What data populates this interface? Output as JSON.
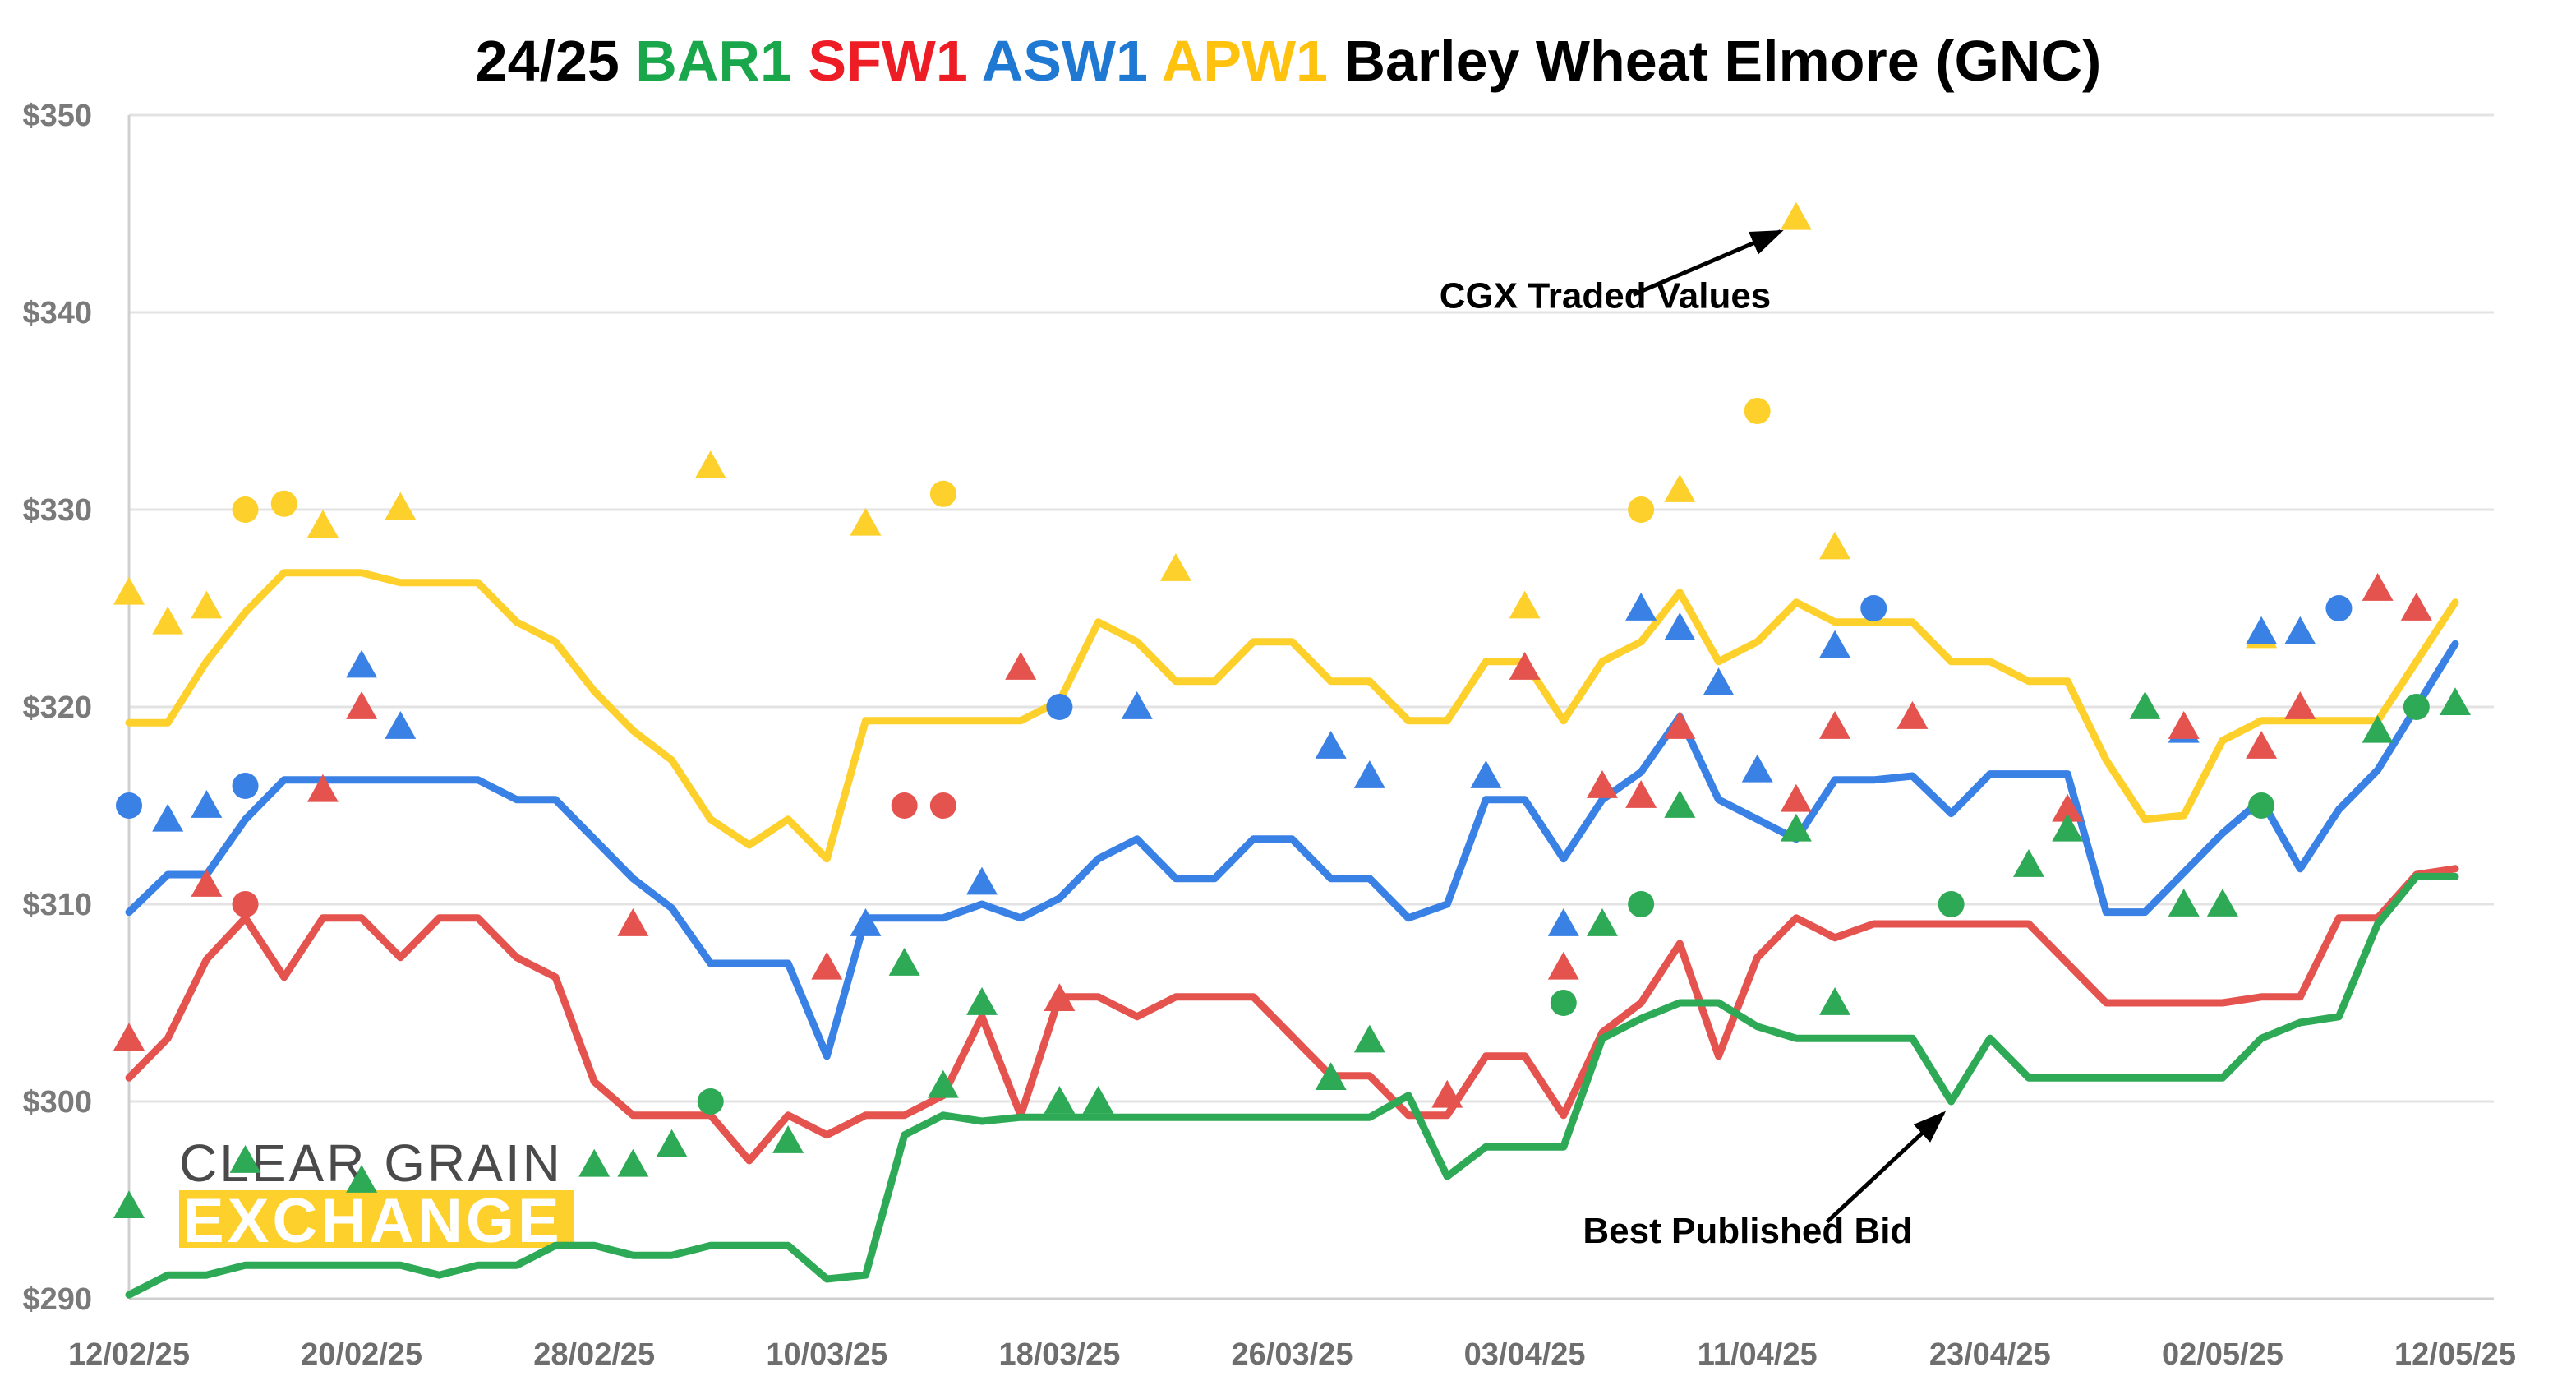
{
  "chart_data": {
    "type": "line",
    "title_parts": [
      {
        "text": "24/25 ",
        "color": "#000000"
      },
      {
        "text": "BAR1 ",
        "color": "#1aa64a"
      },
      {
        "text": "SFW1 ",
        "color": "#ee1c24"
      },
      {
        "text": "ASW1 ",
        "color": "#1f78d1"
      },
      {
        "text": "APW1 ",
        "color": "#ffc20e"
      },
      {
        "text": "Barley Wheat Elmore (GNC)",
        "color": "#000000"
      }
    ],
    "y_ticks": [
      {
        "value": 290,
        "label": "$290"
      },
      {
        "value": 300,
        "label": "$300"
      },
      {
        "value": 310,
        "label": "$310"
      },
      {
        "value": 320,
        "label": "$320"
      },
      {
        "value": 330,
        "label": "$330"
      },
      {
        "value": 340,
        "label": "$340"
      },
      {
        "value": 350,
        "label": "$350"
      }
    ],
    "ylim": [
      290,
      350
    ],
    "x_ticks": [
      {
        "index": 0,
        "label": "12/02/25"
      },
      {
        "index": 6,
        "label": "20/02/25"
      },
      {
        "index": 12,
        "label": "28/02/25"
      },
      {
        "index": 18,
        "label": "10/03/25"
      },
      {
        "index": 24,
        "label": "18/03/25"
      },
      {
        "index": 30,
        "label": "26/03/25"
      },
      {
        "index": 36,
        "label": "03/04/25"
      },
      {
        "index": 42,
        "label": "11/04/25"
      },
      {
        "index": 48,
        "label": "23/04/25"
      },
      {
        "index": 54,
        "label": "02/05/25"
      },
      {
        "index": 60,
        "label": "12/05/25"
      }
    ],
    "xlim": [
      0,
      60
    ],
    "grid": true,
    "colors": {
      "BAR1": "#2eaa57",
      "SFW1": "#e5534f",
      "ASW1": "#3a81e6",
      "APW1": "#fdd02c"
    },
    "series": [
      {
        "key": "APW1",
        "values": [
          319.2,
          319.2,
          322.3,
          324.8,
          326.8,
          326.8,
          326.8,
          326.3,
          326.3,
          326.3,
          324.3,
          323.3,
          320.8,
          318.8,
          317.3,
          314.3,
          313.0,
          314.3,
          312.3,
          319.3,
          319.3,
          319.3,
          319.3,
          319.3,
          320.3,
          324.3,
          323.3,
          321.3,
          321.3,
          323.3,
          323.3,
          321.3,
          321.3,
          319.3,
          319.3,
          322.3,
          322.3,
          319.3,
          322.3,
          323.3,
          325.8,
          322.3,
          323.3,
          325.3,
          324.3,
          324.3,
          324.3,
          322.3,
          322.3,
          321.3,
          321.3,
          317.3,
          314.3,
          314.5,
          318.3,
          319.3,
          319.3,
          319.3,
          319.3,
          322.3,
          325.3
        ]
      },
      {
        "key": "ASW1",
        "values": [
          309.6,
          311.5,
          311.5,
          314.3,
          316.3,
          316.3,
          316.3,
          316.3,
          316.3,
          316.3,
          315.3,
          315.3,
          313.3,
          311.3,
          309.8,
          307.0,
          307.0,
          307.0,
          302.3,
          309.3,
          309.3,
          309.3,
          310.0,
          309.3,
          310.3,
          312.3,
          313.3,
          311.3,
          311.3,
          313.3,
          313.3,
          311.3,
          311.3,
          309.3,
          310.0,
          315.3,
          315.3,
          312.3,
          315.3,
          316.7,
          319.5,
          315.3,
          314.3,
          313.3,
          316.3,
          316.3,
          316.5,
          314.6,
          316.6,
          316.6,
          316.6,
          309.6,
          309.6,
          311.6,
          313.6,
          315.3,
          311.8,
          314.8,
          316.8,
          320.0,
          323.2
        ]
      },
      {
        "key": "SFW1",
        "values": [
          301.2,
          303.2,
          307.2,
          309.3,
          306.3,
          309.3,
          309.3,
          307.3,
          309.3,
          309.3,
          307.3,
          306.3,
          301.0,
          299.3,
          299.3,
          299.3,
          297.0,
          299.3,
          298.3,
          299.3,
          299.3,
          300.3,
          304.3,
          299.3,
          305.3,
          305.3,
          304.3,
          305.3,
          305.3,
          305.3,
          303.3,
          301.3,
          301.3,
          299.3,
          299.3,
          302.3,
          302.3,
          299.3,
          303.5,
          305.0,
          308.0,
          302.3,
          307.3,
          309.3,
          308.3,
          309.0,
          309.0,
          309.0,
          309.0,
          309.0,
          307.0,
          305.0,
          305.0,
          305.0,
          305.0,
          305.3,
          305.3,
          309.3,
          309.3,
          311.5,
          311.8
        ]
      },
      {
        "key": "BAR1",
        "values": [
          290.2,
          291.2,
          291.2,
          291.7,
          291.7,
          291.7,
          291.7,
          291.7,
          291.2,
          291.7,
          291.7,
          292.7,
          292.7,
          292.2,
          292.2,
          292.7,
          292.7,
          292.7,
          291.0,
          291.2,
          298.3,
          299.3,
          299.0,
          299.2,
          299.2,
          299.2,
          299.2,
          299.2,
          299.2,
          299.2,
          299.2,
          299.2,
          299.2,
          300.3,
          296.2,
          297.7,
          297.7,
          297.7,
          303.2,
          304.2,
          305.0,
          305.0,
          303.8,
          303.2,
          303.2,
          303.2,
          303.2,
          300.0,
          303.2,
          301.2,
          301.2,
          301.2,
          301.2,
          301.2,
          301.2,
          303.2,
          304.0,
          304.3,
          309.0,
          311.4,
          311.4
        ]
      }
    ],
    "traded_points": [
      {
        "series": "APW1",
        "shape": "triangle",
        "x": 0,
        "y": 325.8
      },
      {
        "series": "APW1",
        "shape": "triangle",
        "x": 1,
        "y": 324.3
      },
      {
        "series": "APW1",
        "shape": "triangle",
        "x": 2,
        "y": 325.1
      },
      {
        "series": "APW1",
        "shape": "circle",
        "x": 3,
        "y": 330.0
      },
      {
        "series": "APW1",
        "shape": "circle",
        "x": 4,
        "y": 330.3
      },
      {
        "series": "APW1",
        "shape": "triangle",
        "x": 5,
        "y": 329.2
      },
      {
        "series": "APW1",
        "shape": "triangle",
        "x": 7,
        "y": 330.1
      },
      {
        "series": "APW1",
        "shape": "triangle",
        "x": 15,
        "y": 332.2
      },
      {
        "series": "APW1",
        "shape": "triangle",
        "x": 19,
        "y": 329.3
      },
      {
        "series": "APW1",
        "shape": "circle",
        "x": 21,
        "y": 330.8
      },
      {
        "series": "APW1",
        "shape": "triangle",
        "x": 27,
        "y": 327.0
      },
      {
        "series": "APW1",
        "shape": "triangle",
        "x": 36,
        "y": 325.1
      },
      {
        "series": "APW1",
        "shape": "circle",
        "x": 39,
        "y": 330.0
      },
      {
        "series": "APW1",
        "shape": "triangle",
        "x": 40,
        "y": 331.0
      },
      {
        "series": "APW1",
        "shape": "circle",
        "x": 42,
        "y": 335.0
      },
      {
        "series": "APW1",
        "shape": "triangle",
        "x": 43,
        "y": 344.8
      },
      {
        "series": "APW1",
        "shape": "triangle",
        "x": 44,
        "y": 328.1
      },
      {
        "series": "APW1",
        "shape": "triangle",
        "x": 55,
        "y": 323.6
      },
      {
        "series": "ASW1",
        "shape": "circle",
        "x": 0,
        "y": 315.0
      },
      {
        "series": "ASW1",
        "shape": "triangle",
        "x": 1,
        "y": 314.3
      },
      {
        "series": "ASW1",
        "shape": "triangle",
        "x": 2,
        "y": 315.0
      },
      {
        "series": "ASW1",
        "shape": "circle",
        "x": 3,
        "y": 316.0
      },
      {
        "series": "ASW1",
        "shape": "triangle",
        "x": 6,
        "y": 322.1
      },
      {
        "series": "ASW1",
        "shape": "triangle",
        "x": 7,
        "y": 319.0
      },
      {
        "series": "ASW1",
        "shape": "triangle",
        "x": 19,
        "y": 309.0
      },
      {
        "series": "ASW1",
        "shape": "triangle",
        "x": 22,
        "y": 311.1
      },
      {
        "series": "ASW1",
        "shape": "circle",
        "x": 24,
        "y": 320.0
      },
      {
        "series": "ASW1",
        "shape": "triangle",
        "x": 26,
        "y": 320.0
      },
      {
        "series": "ASW1",
        "shape": "triangle",
        "x": 31,
        "y": 318.0
      },
      {
        "series": "ASW1",
        "shape": "triangle",
        "x": 32,
        "y": 316.5
      },
      {
        "series": "ASW1",
        "shape": "triangle",
        "x": 35,
        "y": 316.5
      },
      {
        "series": "ASW1",
        "shape": "triangle",
        "x": 37,
        "y": 309.0
      },
      {
        "series": "ASW1",
        "shape": "triangle",
        "x": 39,
        "y": 325.0
      },
      {
        "series": "ASW1",
        "shape": "triangle",
        "x": 40,
        "y": 324.0
      },
      {
        "series": "ASW1",
        "shape": "triangle",
        "x": 41,
        "y": 321.2
      },
      {
        "series": "ASW1",
        "shape": "triangle",
        "x": 42,
        "y": 316.8
      },
      {
        "series": "ASW1",
        "shape": "triangle",
        "x": 44,
        "y": 323.1
      },
      {
        "series": "ASW1",
        "shape": "circle",
        "x": 45,
        "y": 325.0
      },
      {
        "series": "ASW1",
        "shape": "triangle",
        "x": 53,
        "y": 318.8
      },
      {
        "series": "ASW1",
        "shape": "triangle",
        "x": 55,
        "y": 323.8
      },
      {
        "series": "ASW1",
        "shape": "triangle",
        "x": 56,
        "y": 323.8
      },
      {
        "series": "ASW1",
        "shape": "circle",
        "x": 57,
        "y": 325.0
      },
      {
        "series": "SFW1",
        "shape": "triangle",
        "x": 0,
        "y": 303.2
      },
      {
        "series": "SFW1",
        "shape": "triangle",
        "x": 2,
        "y": 311.0
      },
      {
        "series": "SFW1",
        "shape": "circle",
        "x": 3,
        "y": 310.0
      },
      {
        "series": "SFW1",
        "shape": "triangle",
        "x": 5,
        "y": 315.8
      },
      {
        "series": "SFW1",
        "shape": "triangle",
        "x": 6,
        "y": 320.0
      },
      {
        "series": "SFW1",
        "shape": "triangle",
        "x": 13,
        "y": 309.0
      },
      {
        "series": "SFW1",
        "shape": "triangle",
        "x": 18,
        "y": 306.8
      },
      {
        "series": "SFW1",
        "shape": "circle",
        "x": 20,
        "y": 315.0
      },
      {
        "series": "SFW1",
        "shape": "circle",
        "x": 21,
        "y": 315.0
      },
      {
        "series": "SFW1",
        "shape": "triangle",
        "x": 23,
        "y": 322.0
      },
      {
        "series": "SFW1",
        "shape": "triangle",
        "x": 24,
        "y": 305.2
      },
      {
        "series": "SFW1",
        "shape": "triangle",
        "x": 34,
        "y": 300.3
      },
      {
        "series": "SFW1",
        "shape": "triangle",
        "x": 36,
        "y": 322.0
      },
      {
        "series": "SFW1",
        "shape": "triangle",
        "x": 37,
        "y": 306.8
      },
      {
        "series": "SFW1",
        "shape": "triangle",
        "x": 38,
        "y": 316.0
      },
      {
        "series": "SFW1",
        "shape": "triangle",
        "x": 39,
        "y": 315.5
      },
      {
        "series": "SFW1",
        "shape": "triangle",
        "x": 40,
        "y": 319.0
      },
      {
        "series": "SFW1",
        "shape": "triangle",
        "x": 43,
        "y": 315.3
      },
      {
        "series": "SFW1",
        "shape": "triangle",
        "x": 44,
        "y": 319.0
      },
      {
        "series": "SFW1",
        "shape": "triangle",
        "x": 46,
        "y": 319.5
      },
      {
        "series": "SFW1",
        "shape": "triangle",
        "x": 50,
        "y": 314.8
      },
      {
        "series": "SFW1",
        "shape": "triangle",
        "x": 53,
        "y": 319.0
      },
      {
        "series": "SFW1",
        "shape": "triangle",
        "x": 55,
        "y": 318.0
      },
      {
        "series": "SFW1",
        "shape": "triangle",
        "x": 56,
        "y": 320.0
      },
      {
        "series": "SFW1",
        "shape": "triangle",
        "x": 58,
        "y": 326.0
      },
      {
        "series": "SFW1",
        "shape": "triangle",
        "x": 59,
        "y": 325.0
      },
      {
        "series": "BAR1",
        "shape": "triangle",
        "x": 0,
        "y": 294.7
      },
      {
        "series": "BAR1",
        "shape": "triangle",
        "x": 3,
        "y": 297.0
      },
      {
        "series": "BAR1",
        "shape": "triangle",
        "x": 6,
        "y": 296.0
      },
      {
        "series": "BAR1",
        "shape": "triangle",
        "x": 12,
        "y": 296.8
      },
      {
        "series": "BAR1",
        "shape": "triangle",
        "x": 13,
        "y": 296.8
      },
      {
        "series": "BAR1",
        "shape": "triangle",
        "x": 14,
        "y": 297.8
      },
      {
        "series": "BAR1",
        "shape": "circle",
        "x": 15,
        "y": 300.0
      },
      {
        "series": "BAR1",
        "shape": "triangle",
        "x": 17,
        "y": 298.0
      },
      {
        "series": "BAR1",
        "shape": "triangle",
        "x": 20,
        "y": 307.0
      },
      {
        "series": "BAR1",
        "shape": "triangle",
        "x": 21,
        "y": 300.8
      },
      {
        "series": "BAR1",
        "shape": "triangle",
        "x": 22,
        "y": 305.0
      },
      {
        "series": "BAR1",
        "shape": "triangle",
        "x": 24,
        "y": 300.0
      },
      {
        "series": "BAR1",
        "shape": "triangle",
        "x": 25,
        "y": 300.0
      },
      {
        "series": "BAR1",
        "shape": "triangle",
        "x": 31,
        "y": 301.2
      },
      {
        "series": "BAR1",
        "shape": "triangle",
        "x": 32,
        "y": 303.1
      },
      {
        "series": "BAR1",
        "shape": "circle",
        "x": 37,
        "y": 305.0
      },
      {
        "series": "BAR1",
        "shape": "triangle",
        "x": 38,
        "y": 309.0
      },
      {
        "series": "BAR1",
        "shape": "circle",
        "x": 39,
        "y": 310.0
      },
      {
        "series": "BAR1",
        "shape": "triangle",
        "x": 40,
        "y": 315.0
      },
      {
        "series": "BAR1",
        "shape": "triangle",
        "x": 43,
        "y": 313.8
      },
      {
        "series": "BAR1",
        "shape": "triangle",
        "x": 44,
        "y": 305.0
      },
      {
        "series": "BAR1",
        "shape": "circle",
        "x": 47,
        "y": 310.0
      },
      {
        "series": "BAR1",
        "shape": "triangle",
        "x": 49,
        "y": 312.0
      },
      {
        "series": "BAR1",
        "shape": "triangle",
        "x": 50,
        "y": 313.8
      },
      {
        "series": "BAR1",
        "shape": "triangle",
        "x": 52,
        "y": 320.0
      },
      {
        "series": "BAR1",
        "shape": "triangle",
        "x": 53,
        "y": 310.0
      },
      {
        "series": "BAR1",
        "shape": "triangle",
        "x": 54,
        "y": 310.0
      },
      {
        "series": "BAR1",
        "shape": "circle",
        "x": 55,
        "y": 315.0
      },
      {
        "series": "BAR1",
        "shape": "triangle",
        "x": 58,
        "y": 318.8
      },
      {
        "series": "BAR1",
        "shape": "circle",
        "x": 59,
        "y": 320.0
      },
      {
        "series": "BAR1",
        "shape": "triangle",
        "x": 60,
        "y": 320.2
      }
    ],
    "annotations": [
      {
        "text": "CGX Traded Values",
        "label_x": 33.8,
        "label_y": 340.9,
        "arrow_from_x": 38.8,
        "arrow_from_y": 340.9,
        "arrow_to_x": 42.6,
        "arrow_to_y": 344.1
      },
      {
        "text": "Best Published Bid",
        "label_x": 37.5,
        "label_y": 293.5,
        "arrow_from_x": 43.8,
        "arrow_from_y": 293.9,
        "arrow_to_x": 46.8,
        "arrow_to_y": 299.4
      }
    ]
  },
  "logo": {
    "line1": "CLEAR GRAIN",
    "line2": "EXCHANGE",
    "color": "#fdd02c"
  }
}
